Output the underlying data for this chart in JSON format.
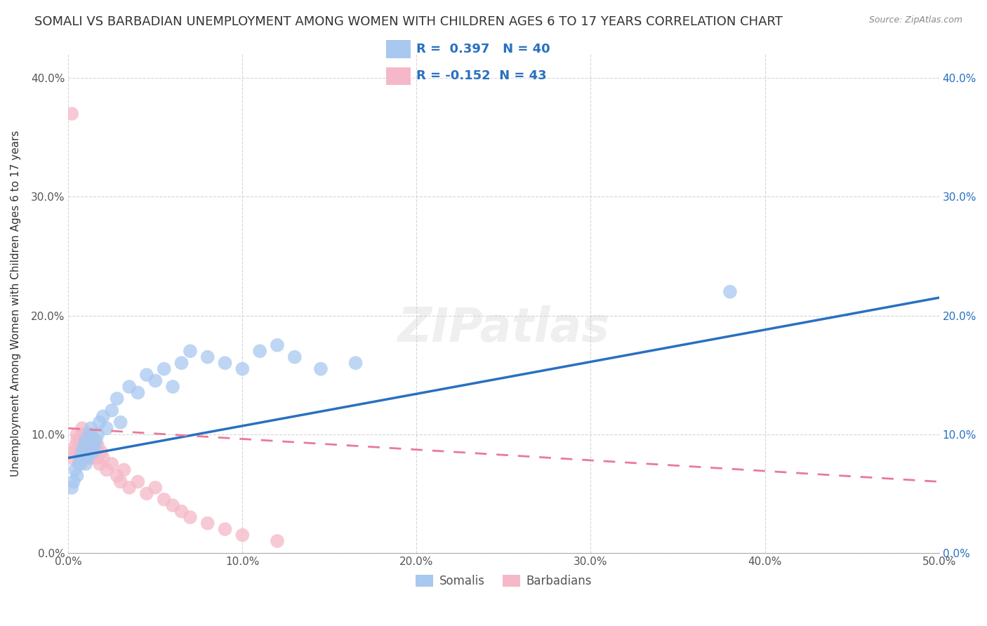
{
  "title": "SOMALI VS BARBADIAN UNEMPLOYMENT AMONG WOMEN WITH CHILDREN AGES 6 TO 17 YEARS CORRELATION CHART",
  "source": "Source: ZipAtlas.com",
  "ylabel": "Unemployment Among Women with Children Ages 6 to 17 years",
  "xlim": [
    0.0,
    0.5
  ],
  "ylim": [
    0.0,
    0.42
  ],
  "xticks": [
    0.0,
    0.1,
    0.2,
    0.3,
    0.4,
    0.5
  ],
  "yticks": [
    0.0,
    0.1,
    0.2,
    0.3,
    0.4
  ],
  "xticklabels": [
    "0.0%",
    "10.0%",
    "20.0%",
    "30.0%",
    "40.0%",
    "50.0%"
  ],
  "yticklabels": [
    "0.0%",
    "10.0%",
    "20.0%",
    "30.0%",
    "40.0%"
  ],
  "legend_labels": [
    "Somalis",
    "Barbadians"
  ],
  "somali_color": "#a8c8f0",
  "barbadian_color": "#f5b8c8",
  "somali_line_color": "#2970c0",
  "barbadian_line_color": "#e87a9a",
  "R_somali": 0.397,
  "N_somali": 40,
  "R_barbadian": -0.152,
  "N_barbadian": 43,
  "somali_line_x0": 0.0,
  "somali_line_y0": 0.08,
  "somali_line_x1": 0.5,
  "somali_line_y1": 0.215,
  "barbadian_line_x0": 0.0,
  "barbadian_line_y0": 0.105,
  "barbadian_line_x1": 0.5,
  "barbadian_line_y1": 0.06,
  "somali_x": [
    0.002,
    0.003,
    0.004,
    0.005,
    0.006,
    0.007,
    0.008,
    0.009,
    0.01,
    0.01,
    0.011,
    0.012,
    0.013,
    0.014,
    0.015,
    0.016,
    0.017,
    0.018,
    0.02,
    0.022,
    0.025,
    0.028,
    0.03,
    0.035,
    0.04,
    0.045,
    0.05,
    0.055,
    0.06,
    0.065,
    0.07,
    0.08,
    0.09,
    0.1,
    0.11,
    0.12,
    0.13,
    0.145,
    0.165,
    0.38
  ],
  "somali_y": [
    0.055,
    0.06,
    0.07,
    0.065,
    0.075,
    0.08,
    0.085,
    0.09,
    0.075,
    0.095,
    0.08,
    0.1,
    0.105,
    0.085,
    0.09,
    0.095,
    0.1,
    0.11,
    0.115,
    0.105,
    0.12,
    0.13,
    0.11,
    0.14,
    0.135,
    0.15,
    0.145,
    0.155,
    0.14,
    0.16,
    0.17,
    0.165,
    0.16,
    0.155,
    0.17,
    0.175,
    0.165,
    0.155,
    0.16,
    0.22
  ],
  "barbadian_x": [
    0.002,
    0.003,
    0.004,
    0.005,
    0.005,
    0.006,
    0.007,
    0.007,
    0.008,
    0.008,
    0.009,
    0.01,
    0.01,
    0.011,
    0.012,
    0.012,
    0.013,
    0.014,
    0.015,
    0.015,
    0.016,
    0.017,
    0.018,
    0.019,
    0.02,
    0.022,
    0.025,
    0.028,
    0.03,
    0.032,
    0.035,
    0.04,
    0.045,
    0.05,
    0.055,
    0.06,
    0.065,
    0.07,
    0.08,
    0.09,
    0.1,
    0.12,
    0.002
  ],
  "barbadian_y": [
    0.08,
    0.085,
    0.09,
    0.095,
    0.1,
    0.085,
    0.075,
    0.095,
    0.1,
    0.105,
    0.09,
    0.095,
    0.1,
    0.085,
    0.08,
    0.095,
    0.1,
    0.09,
    0.095,
    0.085,
    0.08,
    0.09,
    0.075,
    0.085,
    0.08,
    0.07,
    0.075,
    0.065,
    0.06,
    0.07,
    0.055,
    0.06,
    0.05,
    0.055,
    0.045,
    0.04,
    0.035,
    0.03,
    0.025,
    0.02,
    0.015,
    0.01,
    0.37
  ],
  "background_color": "#ffffff",
  "grid_color": "#cccccc",
  "title_fontsize": 13,
  "axis_fontsize": 11,
  "tick_fontsize": 11,
  "legend_fontsize": 13
}
